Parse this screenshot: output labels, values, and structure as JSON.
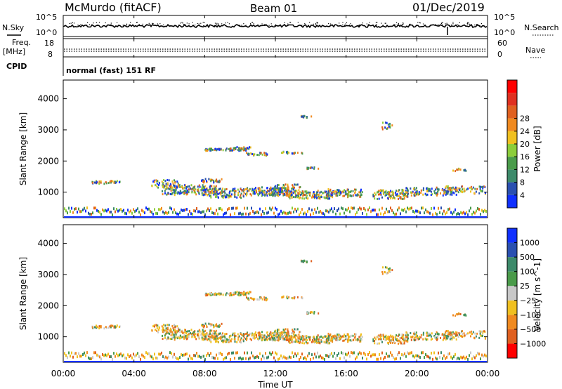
{
  "header": {
    "station": "McMurdo (fitACF)",
    "beam": "Beam 01",
    "date": "01/Dec/2019"
  },
  "panels": {
    "nsky_label": "N.Sky",
    "nsearch_label": "N.Search",
    "nsky_ticks": [
      "10^5",
      "10^0"
    ],
    "nsearch_ticks": [
      "10^5",
      "10^0"
    ],
    "freq_label_1": "Freq.",
    "freq_label_2": "[MHz]",
    "freq_ticks": [
      "18",
      "8"
    ],
    "nave_label": "Nave",
    "nave_ticks": [
      "60",
      "0"
    ],
    "cpid_label": "CPID",
    "cpid_text": "normal (fast) 151 RF"
  },
  "chart_data": [
    {
      "type": "heatmap",
      "name": "power",
      "ylabel": "Slant Range [km]",
      "yticks": [
        "1000",
        "2000",
        "3000",
        "4000"
      ],
      "ylim": [
        180,
        4600
      ],
      "colorbar_label": "Power [dB]",
      "colorbar_ticks": [
        "4",
        "8",
        "12",
        "16",
        "20",
        "24",
        "28"
      ],
      "colorbar_colors": [
        "#1030ff",
        "#2a50b0",
        "#3d8a6a",
        "#4a9b4a",
        "#8ccd3a",
        "#f0c020",
        "#f08a20",
        "#e06020",
        "#e03020",
        "#ff0000"
      ]
    },
    {
      "type": "heatmap",
      "name": "velocity",
      "ylabel": "Slant Range [km]",
      "yticks": [
        "1000",
        "2000",
        "3000",
        "4000"
      ],
      "ylim": [
        180,
        4600
      ],
      "colorbar_label": "Velocity [m s^-1]",
      "colorbar_ticks": [
        "1000",
        "500",
        "100",
        "25",
        "−25",
        "−100",
        "−500",
        "−1000"
      ],
      "colorbar_colors": [
        "#1030ff",
        "#2a50b0",
        "#3d8a6a",
        "#4a9b4a",
        "#c8c8c8",
        "#f0c020",
        "#f08a20",
        "#e06020",
        "#ff0000"
      ]
    }
  ],
  "x_axis": {
    "ticks": [
      "00:00",
      "04:00",
      "08:00",
      "12:00",
      "16:00",
      "20:00",
      "00:00"
    ],
    "label": "Time UT"
  }
}
